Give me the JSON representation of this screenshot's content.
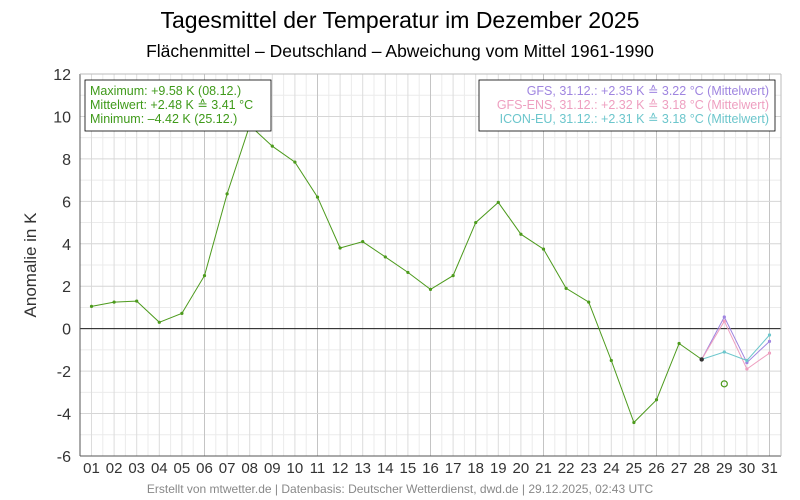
{
  "chart_data": {
    "type": "line",
    "title": "Tagesmittel der Temperatur im Dezember 2025",
    "subtitle": "Flächenmittel – Deutschland – Abweichung vom Mittel 1961-1990",
    "ylabel": "Anomalie in K",
    "xlabel": "",
    "ylim": [
      -6,
      12
    ],
    "yticks": [
      -6,
      -4,
      -2,
      0,
      2,
      4,
      6,
      8,
      10,
      12
    ],
    "categories": [
      "01",
      "02",
      "03",
      "04",
      "05",
      "06",
      "07",
      "08",
      "09",
      "10",
      "11",
      "12",
      "13",
      "14",
      "15",
      "16",
      "17",
      "18",
      "19",
      "20",
      "21",
      "22",
      "23",
      "24",
      "25",
      "26",
      "27",
      "28",
      "29",
      "30",
      "31"
    ],
    "grid": true,
    "series": [
      {
        "name": "",
        "color": "#4c9a1c",
        "x": [
          1,
          2,
          3,
          4,
          5,
          6,
          7,
          8,
          9,
          10,
          11,
          12,
          13,
          14,
          15,
          16,
          17,
          18,
          19,
          20,
          21,
          22,
          23,
          24,
          25,
          26,
          27,
          28
        ],
        "values": [
          1.05,
          1.25,
          1.3,
          0.3,
          0.72,
          2.5,
          6.35,
          9.58,
          8.6,
          7.85,
          6.2,
          3.8,
          4.1,
          3.38,
          2.65,
          1.85,
          2.5,
          5.0,
          5.95,
          4.45,
          3.75,
          1.9,
          1.25,
          -1.5,
          -4.42,
          -3.35,
          -0.7,
          -1.45
        ]
      },
      {
        "name": "GFS",
        "color": "#9f85e0",
        "x": [
          28,
          29,
          30,
          31
        ],
        "values": [
          -1.45,
          0.55,
          -1.6,
          -0.6
        ]
      },
      {
        "name": "GFS-ENS",
        "color": "#ee9fc0",
        "x": [
          28,
          29,
          30,
          31
        ],
        "values": [
          -1.45,
          0.35,
          -1.9,
          -1.15
        ]
      },
      {
        "name": "ICON-EU",
        "color": "#6cc6cc",
        "x": [
          28,
          29,
          30,
          31
        ],
        "values": [
          -1.45,
          -1.1,
          -1.5,
          -0.3
        ]
      }
    ],
    "extra_points": [
      {
        "x": 29,
        "y": -2.6,
        "color": "#4c9a1c"
      }
    ],
    "stats_box": {
      "position": "top-left",
      "color": "#3f9a1a",
      "lines": [
        "Maximum: +9.58 K  (08.12.)",
        "Mittelwert: +2.48 K  ≙  3.41 °C",
        "Minimum:  –4.42 K  (25.12.)"
      ]
    },
    "forecast_box": {
      "position": "top-right",
      "lines": [
        {
          "text": "GFS, 31.12.: +2.35 K  ≙  3.22 °C (Mittelwert)",
          "color": "#9f85e0"
        },
        {
          "text": "GFS-ENS, 31.12.: +2.32 K  ≙  3.18 °C (Mittelwert)",
          "color": "#ee9fc0"
        },
        {
          "text": "ICON-EU, 31.12.: +2.31 K  ≙  3.18 °C (Mittelwert)",
          "color": "#6cc6cc"
        }
      ]
    }
  },
  "footer": "Erstellt von mtwetter.de | Datenbasis: Deutscher Wetterdienst, dwd.de | 29.12.2025, 02:43 UTC"
}
